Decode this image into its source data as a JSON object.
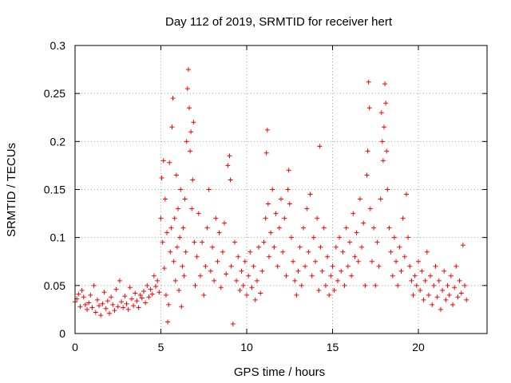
{
  "chart_data": {
    "type": "scatter",
    "title": "Day 112 of 2019, SRMTID for receiver hert",
    "xlabel": "GPS time / hours",
    "ylabel": "SRMTID / TECUs",
    "xlim": [
      0,
      24
    ],
    "ylim": [
      0,
      0.3
    ],
    "xticks": [
      0,
      5,
      10,
      15,
      20
    ],
    "xtick_labels": [
      "0",
      "5",
      "10",
      "15",
      "20"
    ],
    "yticks": [
      0,
      0.05,
      0.1,
      0.15,
      0.2,
      0.25,
      0.3
    ],
    "ytick_labels": [
      "0",
      "0.05",
      "0.1",
      "0.15",
      "0.2",
      "0.25",
      "0.3"
    ],
    "grid": true,
    "marker": "+",
    "color": "#ff0000",
    "series": [
      {
        "name": "SRMTID",
        "points": [
          [
            0.0,
            0.033
          ],
          [
            0.1,
            0.036
          ],
          [
            0.2,
            0.041
          ],
          [
            0.3,
            0.028
          ],
          [
            0.4,
            0.045
          ],
          [
            0.5,
            0.038
          ],
          [
            0.6,
            0.03
          ],
          [
            0.7,
            0.025
          ],
          [
            0.8,
            0.032
          ],
          [
            0.9,
            0.04
          ],
          [
            1.0,
            0.027
          ],
          [
            1.1,
            0.05
          ],
          [
            1.2,
            0.022
          ],
          [
            1.3,
            0.035
          ],
          [
            1.4,
            0.029
          ],
          [
            1.5,
            0.019
          ],
          [
            1.6,
            0.031
          ],
          [
            1.7,
            0.043
          ],
          [
            1.8,
            0.026
          ],
          [
            1.9,
            0.034
          ],
          [
            2.0,
            0.021
          ],
          [
            2.1,
            0.038
          ],
          [
            2.2,
            0.03
          ],
          [
            2.3,
            0.024
          ],
          [
            2.4,
            0.046
          ],
          [
            2.5,
            0.028
          ],
          [
            2.6,
            0.055
          ],
          [
            2.7,
            0.033
          ],
          [
            2.8,
            0.027
          ],
          [
            2.9,
            0.039
          ],
          [
            3.0,
            0.031
          ],
          [
            3.1,
            0.025
          ],
          [
            3.2,
            0.048
          ],
          [
            3.3,
            0.036
          ],
          [
            3.4,
            0.029
          ],
          [
            3.5,
            0.042
          ],
          [
            3.6,
            0.034
          ],
          [
            3.7,
            0.027
          ],
          [
            3.8,
            0.04
          ],
          [
            3.9,
            0.037
          ],
          [
            4.0,
            0.044
          ],
          [
            4.1,
            0.032
          ],
          [
            4.2,
            0.05
          ],
          [
            4.3,
            0.038
          ],
          [
            4.4,
            0.046
          ],
          [
            4.5,
            0.041
          ],
          [
            4.6,
            0.06
          ],
          [
            4.7,
            0.049
          ],
          [
            4.8,
            0.055
          ],
          [
            4.9,
            0.043
          ],
          [
            5.0,
            0.12
          ],
          [
            5.05,
            0.162
          ],
          [
            5.1,
            0.095
          ],
          [
            5.15,
            0.18
          ],
          [
            5.2,
            0.068
          ],
          [
            5.25,
            0.14
          ],
          [
            5.3,
            0.04
          ],
          [
            5.35,
            0.105
          ],
          [
            5.4,
            0.012
          ],
          [
            5.45,
            0.03
          ],
          [
            5.5,
            0.178
          ],
          [
            5.55,
            0.085
          ],
          [
            5.6,
            0.11
          ],
          [
            5.65,
            0.215
          ],
          [
            5.7,
            0.245
          ],
          [
            5.75,
            0.075
          ],
          [
            5.8,
            0.12
          ],
          [
            5.85,
            0.055
          ],
          [
            5.9,
            0.165
          ],
          [
            5.95,
            0.09
          ],
          [
            6.0,
            0.13
          ],
          [
            6.05,
            0.045
          ],
          [
            6.1,
            0.1
          ],
          [
            6.15,
            0.15
          ],
          [
            6.2,
            0.028
          ],
          [
            6.25,
            0.07
          ],
          [
            6.3,
            0.11
          ],
          [
            6.35,
            0.06
          ],
          [
            6.4,
            0.14
          ],
          [
            6.45,
            0.085
          ],
          [
            6.5,
            0.2
          ],
          [
            6.55,
            0.255
          ],
          [
            6.6,
            0.275
          ],
          [
            6.65,
            0.235
          ],
          [
            6.7,
            0.19
          ],
          [
            6.75,
            0.21
          ],
          [
            6.8,
            0.13
          ],
          [
            6.85,
            0.16
          ],
          [
            6.9,
            0.22
          ],
          [
            6.95,
            0.095
          ],
          [
            7.0,
            0.05
          ],
          [
            7.1,
            0.08
          ],
          [
            7.2,
            0.125
          ],
          [
            7.3,
            0.06
          ],
          [
            7.4,
            0.095
          ],
          [
            7.5,
            0.04
          ],
          [
            7.6,
            0.07
          ],
          [
            7.7,
            0.11
          ],
          [
            7.8,
            0.15
          ],
          [
            7.9,
            0.065
          ],
          [
            8.0,
            0.09
          ],
          [
            8.1,
            0.055
          ],
          [
            8.2,
            0.12
          ],
          [
            8.3,
            0.075
          ],
          [
            8.4,
            0.105
          ],
          [
            8.5,
            0.048
          ],
          [
            8.6,
            0.085
          ],
          [
            8.7,
            0.115
          ],
          [
            8.8,
            0.062
          ],
          [
            8.9,
            0.175
          ],
          [
            9.0,
            0.185
          ],
          [
            9.05,
            0.16
          ],
          [
            9.1,
            0.07
          ],
          [
            9.2,
            0.01
          ],
          [
            9.3,
            0.095
          ],
          [
            9.4,
            0.055
          ],
          [
            9.5,
            0.08
          ],
          [
            9.6,
            0.045
          ],
          [
            9.7,
            0.065
          ],
          [
            9.8,
            0.05
          ],
          [
            9.9,
            0.075
          ],
          [
            10.0,
            0.04
          ],
          [
            10.1,
            0.06
          ],
          [
            10.2,
            0.085
          ],
          [
            10.3,
            0.048
          ],
          [
            10.4,
            0.07
          ],
          [
            10.5,
            0.035
          ],
          [
            10.6,
            0.055
          ],
          [
            10.7,
            0.09
          ],
          [
            10.8,
            0.042
          ],
          [
            10.9,
            0.065
          ],
          [
            11.0,
            0.095
          ],
          [
            11.1,
            0.12
          ],
          [
            11.15,
            0.188
          ],
          [
            11.2,
            0.212
          ],
          [
            11.25,
            0.135
          ],
          [
            11.3,
            0.08
          ],
          [
            11.4,
            0.105
          ],
          [
            11.5,
            0.15
          ],
          [
            11.6,
            0.09
          ],
          [
            11.7,
            0.125
          ],
          [
            11.8,
            0.07
          ],
          [
            11.9,
            0.11
          ],
          [
            12.0,
            0.14
          ],
          [
            12.1,
            0.085
          ],
          [
            12.2,
            0.12
          ],
          [
            12.3,
            0.06
          ],
          [
            12.4,
            0.15
          ],
          [
            12.45,
            0.17
          ],
          [
            12.5,
            0.135
          ],
          [
            12.6,
            0.1
          ],
          [
            12.7,
            0.075
          ],
          [
            12.8,
            0.055
          ],
          [
            12.9,
            0.04
          ],
          [
            13.0,
            0.065
          ],
          [
            13.1,
            0.09
          ],
          [
            13.2,
            0.05
          ],
          [
            13.3,
            0.11
          ],
          [
            13.4,
            0.07
          ],
          [
            13.5,
            0.13
          ],
          [
            13.6,
            0.085
          ],
          [
            13.7,
            0.145
          ],
          [
            13.8,
            0.06
          ],
          [
            13.9,
            0.1
          ],
          [
            14.0,
            0.075
          ],
          [
            14.1,
            0.12
          ],
          [
            14.2,
            0.045
          ],
          [
            14.25,
            0.195
          ],
          [
            14.3,
            0.09
          ],
          [
            14.4,
            0.065
          ],
          [
            14.5,
            0.11
          ],
          [
            14.6,
            0.05
          ],
          [
            14.7,
            0.08
          ],
          [
            14.8,
            0.04
          ],
          [
            14.9,
            0.06
          ],
          [
            15.0,
            0.07
          ],
          [
            15.1,
            0.045
          ],
          [
            15.2,
            0.09
          ],
          [
            15.3,
            0.055
          ],
          [
            15.4,
            0.1
          ],
          [
            15.5,
            0.065
          ],
          [
            15.6,
            0.085
          ],
          [
            15.7,
            0.05
          ],
          [
            15.8,
            0.11
          ],
          [
            15.9,
            0.07
          ],
          [
            16.0,
            0.095
          ],
          [
            16.1,
            0.06
          ],
          [
            16.2,
            0.125
          ],
          [
            16.3,
            0.08
          ],
          [
            16.4,
            0.105
          ],
          [
            16.5,
            0.075
          ],
          [
            16.6,
            0.14
          ],
          [
            16.7,
            0.09
          ],
          [
            16.8,
            0.115
          ],
          [
            16.9,
            0.05
          ],
          [
            17.0,
            0.165
          ],
          [
            17.05,
            0.19
          ],
          [
            17.1,
            0.262
          ],
          [
            17.15,
            0.235
          ],
          [
            17.2,
            0.13
          ],
          [
            17.3,
            0.075
          ],
          [
            17.4,
            0.11
          ],
          [
            17.5,
            0.05
          ],
          [
            17.6,
            0.095
          ],
          [
            17.7,
            0.07
          ],
          [
            17.8,
            0.14
          ],
          [
            17.85,
            0.23
          ],
          [
            17.9,
            0.2
          ],
          [
            17.95,
            0.18
          ],
          [
            18.0,
            0.215
          ],
          [
            18.05,
            0.26
          ],
          [
            18.1,
            0.24
          ],
          [
            18.15,
            0.19
          ],
          [
            18.2,
            0.15
          ],
          [
            18.3,
            0.11
          ],
          [
            18.4,
            0.085
          ],
          [
            18.5,
            0.06
          ],
          [
            18.6,
            0.1
          ],
          [
            18.7,
            0.075
          ],
          [
            18.8,
            0.05
          ],
          [
            18.9,
            0.09
          ],
          [
            19.0,
            0.065
          ],
          [
            19.1,
            0.12
          ],
          [
            19.2,
            0.08
          ],
          [
            19.3,
            0.145
          ],
          [
            19.4,
            0.1
          ],
          [
            19.5,
            0.07
          ],
          [
            19.6,
            0.055
          ],
          [
            19.7,
            0.04
          ],
          [
            19.8,
            0.06
          ],
          [
            19.9,
            0.05
          ],
          [
            20.0,
            0.075
          ],
          [
            20.1,
            0.045
          ],
          [
            20.2,
            0.065
          ],
          [
            20.3,
            0.035
          ],
          [
            20.4,
            0.055
          ],
          [
            20.5,
            0.085
          ],
          [
            20.6,
            0.04
          ],
          [
            20.7,
            0.06
          ],
          [
            20.8,
            0.03
          ],
          [
            20.9,
            0.05
          ],
          [
            21.0,
            0.07
          ],
          [
            21.1,
            0.038
          ],
          [
            21.2,
            0.055
          ],
          [
            21.3,
            0.025
          ],
          [
            21.4,
            0.045
          ],
          [
            21.5,
            0.065
          ],
          [
            21.6,
            0.035
          ],
          [
            21.7,
            0.05
          ],
          [
            21.8,
            0.04
          ],
          [
            21.9,
            0.06
          ],
          [
            22.0,
            0.03
          ],
          [
            22.1,
            0.048
          ],
          [
            22.2,
            0.07
          ],
          [
            22.3,
            0.038
          ],
          [
            22.4,
            0.055
          ],
          [
            22.5,
            0.042
          ],
          [
            22.6,
            0.092
          ],
          [
            22.7,
            0.05
          ],
          [
            22.8,
            0.035
          ]
        ]
      }
    ]
  }
}
